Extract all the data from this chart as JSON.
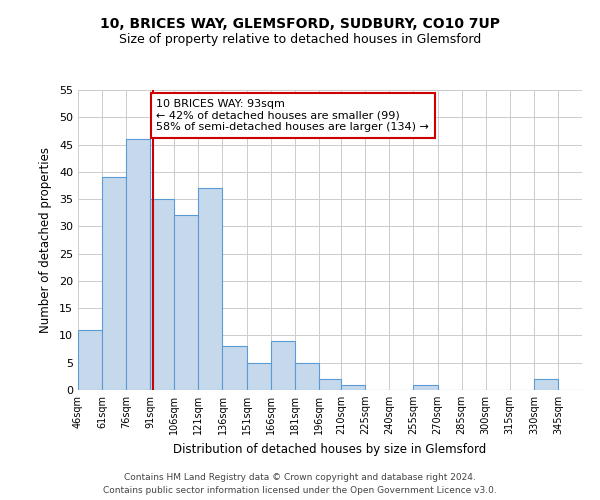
{
  "title": "10, BRICES WAY, GLEMSFORD, SUDBURY, CO10 7UP",
  "subtitle": "Size of property relative to detached houses in Glemsford",
  "xlabel": "Distribution of detached houses by size in Glemsford",
  "ylabel": "Number of detached properties",
  "bar_edges": [
    46,
    61,
    76,
    91,
    106,
    121,
    136,
    151,
    166,
    181,
    196,
    210,
    225,
    240,
    255,
    270,
    285,
    300,
    315,
    330,
    345,
    360
  ],
  "bar_heights": [
    11,
    39,
    46,
    35,
    32,
    37,
    8,
    5,
    9,
    5,
    2,
    1,
    0,
    0,
    1,
    0,
    0,
    0,
    0,
    2,
    0
  ],
  "bar_color": "#c6d9ec",
  "bar_edge_color": "#5b9bd5",
  "property_line_x": 93,
  "property_line_color": "#cc0000",
  "annotation_title": "10 BRICES WAY: 93sqm",
  "annotation_line1": "← 42% of detached houses are smaller (99)",
  "annotation_line2": "58% of semi-detached houses are larger (134) →",
  "annotation_box_color": "#ffffff",
  "annotation_box_edge_color": "#cc0000",
  "ylim": [
    0,
    55
  ],
  "yticks": [
    0,
    5,
    10,
    15,
    20,
    25,
    30,
    35,
    40,
    45,
    50,
    55
  ],
  "tick_labels": [
    "46sqm",
    "61sqm",
    "76sqm",
    "91sqm",
    "106sqm",
    "121sqm",
    "136sqm",
    "151sqm",
    "166sqm",
    "181sqm",
    "196sqm",
    "210sqm",
    "225sqm",
    "240sqm",
    "255sqm",
    "270sqm",
    "285sqm",
    "300sqm",
    "315sqm",
    "330sqm",
    "345sqm"
  ],
  "footnote1": "Contains HM Land Registry data © Crown copyright and database right 2024.",
  "footnote2": "Contains public sector information licensed under the Open Government Licence v3.0.",
  "background_color": "#ffffff",
  "grid_color": "#cccccc"
}
